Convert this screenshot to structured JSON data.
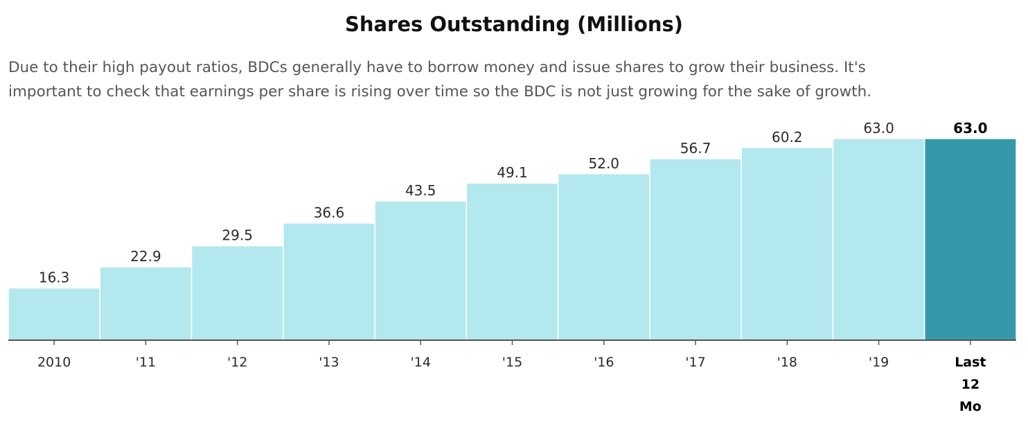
{
  "chart_data": {
    "type": "bar",
    "title": "Shares Outstanding (Millions)",
    "subtitle_lines": [
      "Due to their high payout ratios, BDCs generally have to borrow money and issue shares to grow their business. It's",
      "important to check that earnings per share is rising over time so the BDC is not just growing for the sake of growth."
    ],
    "categories": [
      "2010",
      "'11",
      "'12",
      "'13",
      "'14",
      "'15",
      "'16",
      "'17",
      "'18",
      "'19",
      "Last 12 Mo"
    ],
    "category_label_lines": [
      [
        "2010"
      ],
      [
        "'11"
      ],
      [
        "'12"
      ],
      [
        "'13"
      ],
      [
        "'14"
      ],
      [
        "'15"
      ],
      [
        "'16"
      ],
      [
        "'17"
      ],
      [
        "'18"
      ],
      [
        "'19"
      ],
      [
        "Last",
        "12",
        "Mo"
      ]
    ],
    "values": [
      16.3,
      22.9,
      29.5,
      36.6,
      43.5,
      49.1,
      52.0,
      56.7,
      60.2,
      63.0,
      63.0
    ],
    "value_labels": [
      "16.3",
      "22.9",
      "29.5",
      "36.6",
      "43.5",
      "49.1",
      "52.0",
      "56.7",
      "60.2",
      "63.0",
      "63.0"
    ],
    "highlight_index": 10,
    "ylim": [
      0,
      63.0
    ],
    "grid": false,
    "xlabel": "",
    "ylabel": "",
    "colors": {
      "bar": "#b3e8ee",
      "highlight": "#3599ab",
      "axis": "#555555",
      "bar_border": "#ffffff"
    }
  }
}
